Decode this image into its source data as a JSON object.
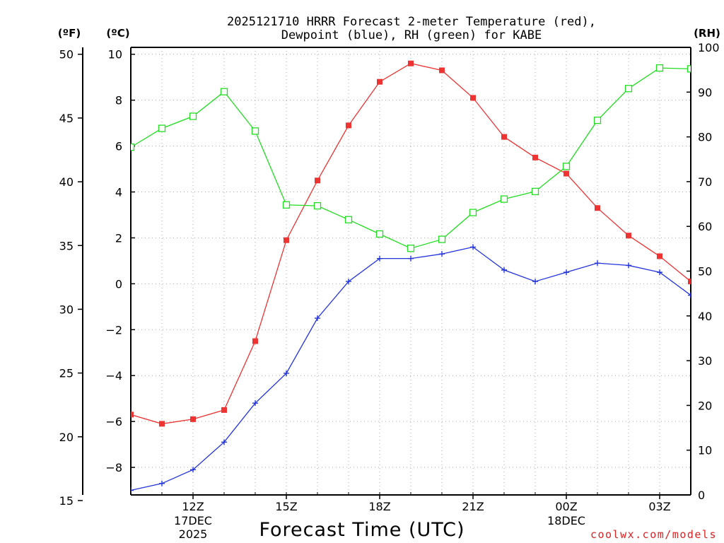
{
  "chart_data": {
    "type": "line",
    "title_line1": "2025121710 HRRR Forecast 2-meter Temperature (red),",
    "title_line2": "Dewpoint (blue), RH (green) for KABE",
    "xlabel": "Forecast Time (UTC)",
    "credit": "coolwx.com/models",
    "left_outer_unit": "(ºF)",
    "left_inner_unit": "(ºC)",
    "right_unit": "(RH)",
    "x_hours": [
      10,
      11,
      12,
      13,
      14,
      15,
      16,
      17,
      18,
      19,
      20,
      21,
      22,
      23,
      24,
      25,
      26,
      27,
      28
    ],
    "x_range": [
      10,
      28
    ],
    "x_ticks": [
      {
        "hour": 12,
        "label": "12Z",
        "sub1": "17DEC",
        "sub2": "2025"
      },
      {
        "hour": 15,
        "label": "15Z",
        "sub1": "",
        "sub2": ""
      },
      {
        "hour": 18,
        "label": "18Z",
        "sub1": "",
        "sub2": ""
      },
      {
        "hour": 21,
        "label": "21Z",
        "sub1": "",
        "sub2": ""
      },
      {
        "hour": 24,
        "label": "00Z",
        "sub1": "18DEC",
        "sub2": ""
      },
      {
        "hour": 27,
        "label": "03Z",
        "sub1": "",
        "sub2": ""
      }
    ],
    "celsius_range": [
      -9.2,
      10.3
    ],
    "celsius_ticks": [
      -8,
      -6,
      -4,
      -2,
      0,
      2,
      4,
      6,
      8,
      10
    ],
    "fahrenheit_ticks": [
      15,
      20,
      25,
      30,
      35,
      40,
      45,
      50
    ],
    "rh_range": [
      0,
      100
    ],
    "rh_ticks": [
      0,
      10,
      20,
      30,
      40,
      50,
      60,
      70,
      80,
      90,
      100
    ],
    "series": [
      {
        "name": "Temperature",
        "color": "#ee3333",
        "marker": "filled-square",
        "axis": "celsius",
        "values": [
          -5.7,
          -6.1,
          -5.9,
          -5.5,
          -2.5,
          1.9,
          4.5,
          6.9,
          8.8,
          9.6,
          9.3,
          8.1,
          6.4,
          5.5,
          4.8,
          3.3,
          2.1,
          1.2,
          0.1
        ]
      },
      {
        "name": "Dewpoint",
        "color": "#2233dd",
        "marker": "plus",
        "axis": "celsius",
        "values": [
          -9.0,
          -8.7,
          -8.1,
          -6.9,
          -5.2,
          -3.9,
          -1.5,
          0.1,
          1.1,
          1.1,
          1.3,
          1.6,
          0.6,
          0.1,
          0.5,
          0.9,
          0.8,
          0.5,
          -0.5
        ]
      },
      {
        "name": "RH",
        "color": "#22dd22",
        "marker": "open-square",
        "axis": "rh",
        "values": [
          77.7,
          81.9,
          84.6,
          90.1,
          81.3,
          64.8,
          64.6,
          61.5,
          58.3,
          55.1,
          57.1,
          63.1,
          66.1,
          67.8,
          73.4,
          83.7,
          90.8,
          95.4,
          95.2
        ]
      }
    ]
  }
}
